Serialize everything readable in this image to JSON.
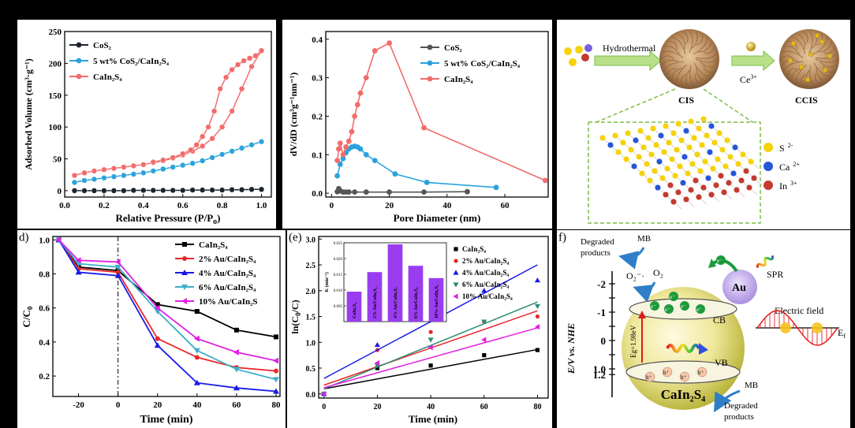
{
  "panels": {
    "a": {
      "type": "line",
      "xlabel": "Relative Pressure (P/P",
      "xlabel_sub": "o",
      "ylabel": "Adsorbed Volume (cm³·g⁻¹)",
      "xlim": [
        0,
        1.05
      ],
      "ylim": [
        -10,
        250
      ],
      "xticks": [
        0.0,
        0.2,
        0.4,
        0.6,
        0.8,
        1.0
      ],
      "yticks": [
        0,
        50,
        100,
        150,
        200,
        250
      ],
      "legend": [
        {
          "name": "CoS₂",
          "color": "#1c2430"
        },
        {
          "name": "5 wt% CoS₂/CaIn₂S₄",
          "color": "#2aa3dc"
        },
        {
          "name": "CaIn₂S₄",
          "color": "#f26c6c"
        }
      ],
      "series": [
        {
          "name": "CoS₂",
          "color": "#1c2430",
          "loop": false,
          "x": [
            0.05,
            0.1,
            0.15,
            0.2,
            0.25,
            0.3,
            0.35,
            0.4,
            0.45,
            0.5,
            0.55,
            0.6,
            0.65,
            0.7,
            0.75,
            0.8,
            0.85,
            0.9,
            0.95,
            1.0
          ],
          "y": [
            0,
            0,
            0,
            0,
            0,
            0,
            0.5,
            0.5,
            0.5,
            0.5,
            0.5,
            0.5,
            1,
            1,
            1,
            1,
            1.5,
            1.5,
            2,
            2
          ]
        },
        {
          "name": "5 wt% CoS₂/CaIn₂S₄",
          "color": "#2aa3dc",
          "loop": false,
          "x": [
            0.05,
            0.1,
            0.15,
            0.2,
            0.25,
            0.3,
            0.35,
            0.4,
            0.45,
            0.5,
            0.55,
            0.6,
            0.65,
            0.7,
            0.75,
            0.8,
            0.85,
            0.9,
            0.95,
            1.0
          ],
          "y": [
            13,
            16,
            18,
            20,
            22,
            24,
            26,
            28,
            31,
            34,
            37,
            40,
            43,
            47,
            52,
            57,
            62,
            67,
            72,
            77
          ]
        },
        {
          "name": "CaIn₂S₄ adsorption",
          "color": "#f26c6c",
          "loop": false,
          "x": [
            0.05,
            0.1,
            0.15,
            0.2,
            0.25,
            0.3,
            0.35,
            0.4,
            0.45,
            0.5,
            0.55,
            0.6,
            0.65,
            0.7,
            0.75,
            0.8,
            0.85,
            0.9,
            0.95,
            1.0
          ],
          "y": [
            24,
            28,
            31,
            33,
            35,
            37,
            39,
            41,
            44,
            47,
            51,
            56,
            62,
            70,
            82,
            100,
            125,
            160,
            195,
            220
          ]
        },
        {
          "name": "CaIn₂S₄ desorption",
          "color": "#f26c6c",
          "loop": false,
          "x": [
            1.0,
            0.97,
            0.94,
            0.91,
            0.88,
            0.85,
            0.82,
            0.79,
            0.76,
            0.73,
            0.7,
            0.67,
            0.64,
            0.6,
            0.55,
            0.5,
            0.45
          ],
          "y": [
            220,
            212,
            208,
            204,
            198,
            190,
            178,
            160,
            125,
            100,
            85,
            72,
            64,
            58,
            52,
            48,
            45
          ]
        }
      ]
    },
    "b": {
      "type": "line",
      "xlabel": "Pore Diameter (nm)",
      "ylabel": "dV/dD (cm³g⁻¹nm⁻¹)",
      "xlim": [
        -2,
        75
      ],
      "ylim": [
        -0.01,
        0.42
      ],
      "xticks": [
        0,
        20,
        40,
        60
      ],
      "yticks": [
        0.0,
        0.1,
        0.2,
        0.3,
        0.4
      ],
      "legend": [
        {
          "name": "CoS₂",
          "color": "#555555"
        },
        {
          "name": "5 wt% CoS₂/CaIn₂S₄",
          "color": "#2aa3dc"
        },
        {
          "name": "CaIn₂S₄",
          "color": "#f26c6c"
        }
      ],
      "series": [
        {
          "name": "CoS₂",
          "color": "#555555",
          "x": [
            2,
            2.5,
            3,
            4,
            5,
            6,
            8,
            12,
            20,
            32,
            47
          ],
          "y": [
            0.004,
            0.012,
            0.006,
            0.003,
            0.003,
            0.003,
            0.003,
            0.003,
            0.003,
            0.003,
            0.004
          ]
        },
        {
          "name": "5 wt% CoS₂/CaIn₂S₄",
          "color": "#2aa3dc",
          "x": [
            2,
            3,
            4,
            5,
            6,
            7,
            8,
            9,
            10,
            12,
            15,
            22,
            33,
            57
          ],
          "y": [
            0.045,
            0.075,
            0.09,
            0.105,
            0.115,
            0.12,
            0.122,
            0.12,
            0.115,
            0.1,
            0.085,
            0.05,
            0.028,
            0.015
          ]
        },
        {
          "name": "CaIn₂S₄",
          "color": "#f26c6c",
          "x": [
            2,
            2.5,
            3,
            4,
            5,
            6,
            7,
            8,
            9,
            10,
            12,
            15,
            20,
            32,
            74
          ],
          "y": [
            0.085,
            0.115,
            0.13,
            0.1,
            0.12,
            0.135,
            0.16,
            0.2,
            0.23,
            0.26,
            0.3,
            0.37,
            0.39,
            0.17,
            0.033
          ]
        }
      ]
    },
    "c": {
      "type": "diagram",
      "labels": {
        "hydrothermal": "Hydrothermal",
        "ce": "Ce",
        "ce_sup": "3+",
        "cis": "CIS",
        "ccis": "CCIS",
        "s": "S",
        "s_sup": "2-",
        "ca": "Ca",
        "ca_sup": "2+",
        "in": "In",
        "in_sup": "3+"
      },
      "colors": {
        "sulfur": "#f5d20a",
        "calcium": "#2456d8",
        "indium": "#c23b2f",
        "arrow": "#b8e08a",
        "dash": "#7cbf45"
      }
    },
    "d": {
      "type": "line",
      "label": "d)",
      "xlabel": "Time (min)",
      "ylabel": "C/C",
      "ylabel_sub": "0",
      "xlim": [
        -33,
        82
      ],
      "ylim": [
        0.08,
        1.02
      ],
      "xticks": [
        -20,
        0,
        20,
        40,
        60,
        80
      ],
      "yticks": [
        0.2,
        0.4,
        0.6,
        0.8,
        1.0
      ],
      "legend": [
        {
          "name": "CaIn₂S₄",
          "color": "#000000"
        },
        {
          "name": "2% Au/CaIn₂S₄",
          "color": "#e8262a"
        },
        {
          "name": "4% Au/CaIn₂S₄",
          "color": "#1a1ae6"
        },
        {
          "name": "6% Au/CaIn₂S₄",
          "color": "#3cb0c9"
        },
        {
          "name": "10% Au/CaIn₂S",
          "color": "#e020e0"
        }
      ],
      "series": [
        {
          "name": "CaIn₂S₄",
          "color": "#000000",
          "marker": "square",
          "x": [
            -30,
            -20,
            0,
            20,
            40,
            60,
            80
          ],
          "y": [
            1.0,
            0.84,
            0.82,
            0.62,
            0.58,
            0.47,
            0.43
          ]
        },
        {
          "name": "2% Au/CaIn₂S₄",
          "color": "#e8262a",
          "marker": "circle",
          "x": [
            -30,
            -20,
            0,
            20,
            40,
            60,
            80
          ],
          "y": [
            1.0,
            0.83,
            0.81,
            0.42,
            0.31,
            0.25,
            0.23
          ]
        },
        {
          "name": "4% Au/CaIn₂S₄",
          "color": "#1a1ae6",
          "marker": "triangle-up",
          "x": [
            -30,
            -20,
            0,
            20,
            40,
            60,
            80
          ],
          "y": [
            1.0,
            0.81,
            0.79,
            0.38,
            0.16,
            0.13,
            0.11
          ]
        },
        {
          "name": "6% Au/CaIn₂S₄",
          "color": "#3cb0c9",
          "marker": "triangle-down",
          "x": [
            -30,
            -20,
            0,
            20,
            40,
            60,
            80
          ],
          "y": [
            1.0,
            0.86,
            0.84,
            0.58,
            0.35,
            0.24,
            0.18
          ]
        },
        {
          "name": "10% Au/CaIn₂S",
          "color": "#e020e0",
          "marker": "triangle-left",
          "x": [
            -30,
            -20,
            0,
            20,
            40,
            60,
            80
          ],
          "y": [
            1.0,
            0.88,
            0.87,
            0.6,
            0.42,
            0.34,
            0.29
          ]
        }
      ]
    },
    "e": {
      "type": "scatter",
      "label": "(e)",
      "xlabel": "Time (min)",
      "ylabel": "ln(C",
      "ylabel_sub": "0",
      "ylabel_end": "/C)",
      "xlim": [
        -2,
        84
      ],
      "ylim": [
        -0.08,
        3.05
      ],
      "xticks": [
        0,
        20,
        40,
        60,
        80
      ],
      "yticks": [
        0.0,
        0.5,
        1.0,
        1.5,
        2.0,
        2.5,
        3.0
      ],
      "legend": [
        {
          "name": "CaIn₂S₄",
          "color": "#000000"
        },
        {
          "name": "2% Au/CaIn₂S₄",
          "color": "#e8262a"
        },
        {
          "name": "4% Au/CaIn₂S₄",
          "color": "#1a1ae6"
        },
        {
          "name": "6% Au/CaIn₂S₄",
          "color": "#2e8b70"
        },
        {
          "name": "10% Au/CaIn₂S₄",
          "color": "#e020e0"
        }
      ],
      "series": [
        {
          "name": "CaIn₂S₄",
          "color": "#000000",
          "marker": "square",
          "x": [
            0,
            20,
            40,
            60,
            80
          ],
          "y": [
            0.0,
            0.5,
            0.55,
            0.75,
            0.85
          ],
          "fit": [
            0.1,
            0.0095
          ]
        },
        {
          "name": "2% Au/CaIn₂S₄",
          "color": "#e8262a",
          "marker": "circle",
          "x": [
            0,
            20,
            40,
            60,
            80
          ],
          "y": [
            0.0,
            0.85,
            1.2,
            1.4,
            1.5
          ],
          "fit": [
            0.17,
            0.018
          ]
        },
        {
          "name": "4% Au/CaIn₂S₄",
          "color": "#1a1ae6",
          "marker": "triangle-up",
          "x": [
            0,
            20,
            40,
            60,
            80
          ],
          "y": [
            0.0,
            0.95,
            1.85,
            2.0,
            2.2
          ],
          "fit": [
            0.3,
            0.0275
          ]
        },
        {
          "name": "6% Au/CaIn₂S₄",
          "color": "#2e8b70",
          "marker": "triangle-down",
          "x": [
            0,
            20,
            40,
            60,
            80
          ],
          "y": [
            0.0,
            0.55,
            1.05,
            1.4,
            1.7
          ],
          "fit": [
            0.1,
            0.021
          ]
        },
        {
          "name": "10% Au/CaIn₂S₄",
          "color": "#e020e0",
          "marker": "triangle-left",
          "x": [
            0,
            20,
            40,
            60,
            80
          ],
          "y": [
            0.0,
            0.6,
            0.9,
            1.05,
            1.3
          ],
          "fit": [
            0.12,
            0.0145
          ]
        }
      ],
      "inset": {
        "type": "bar",
        "ylabel": "K (min⁻¹)",
        "ylim": [
          0.0,
          0.025
        ],
        "yticks": [
          0.005,
          0.01,
          0.015,
          0.02,
          0.025
        ],
        "ytick_labels": [
          "0.005",
          "0.010",
          "0.015",
          "0.020",
          "0.025"
        ],
        "categories": [
          "CaIn₂S₄",
          "2% Au/CaIn₂S₄",
          "4% Au/CaIn₂S₄",
          "6% Au/CaIn₂S₄",
          "10% Au/CaIn₂S₄"
        ],
        "values": [
          0.0095,
          0.0157,
          0.0245,
          0.0177,
          0.0138
        ],
        "color": "#9a3df0"
      }
    },
    "f": {
      "type": "diagram",
      "label": "f)",
      "axis_label": "E/V vs. NHE",
      "axis_ticks": [
        "-2",
        "-1.5",
        "-1",
        "-0.5",
        "0",
        "0.5",
        "1.0",
        "1.2"
      ],
      "labels": {
        "mb_top": "MB",
        "degraded_top_1": "Degraded",
        "degraded_top_2": "products",
        "o2_minus": "O₂⁻·",
        "o2": "O₂",
        "au": "Au",
        "spr": "SPR",
        "cb": "CB",
        "vb": "VB",
        "eg": "Eg=1.98eV",
        "electric_field": "Electric field",
        "ef": "E",
        "ef_sub": "f",
        "catalyst": "CaIn₂S₄",
        "mb_bottom": "MB",
        "degraded_bottom_1": "Degraded",
        "degraded_bottom_2": "products",
        "electron": "e⁻",
        "hole": "h⁺"
      }
    }
  }
}
